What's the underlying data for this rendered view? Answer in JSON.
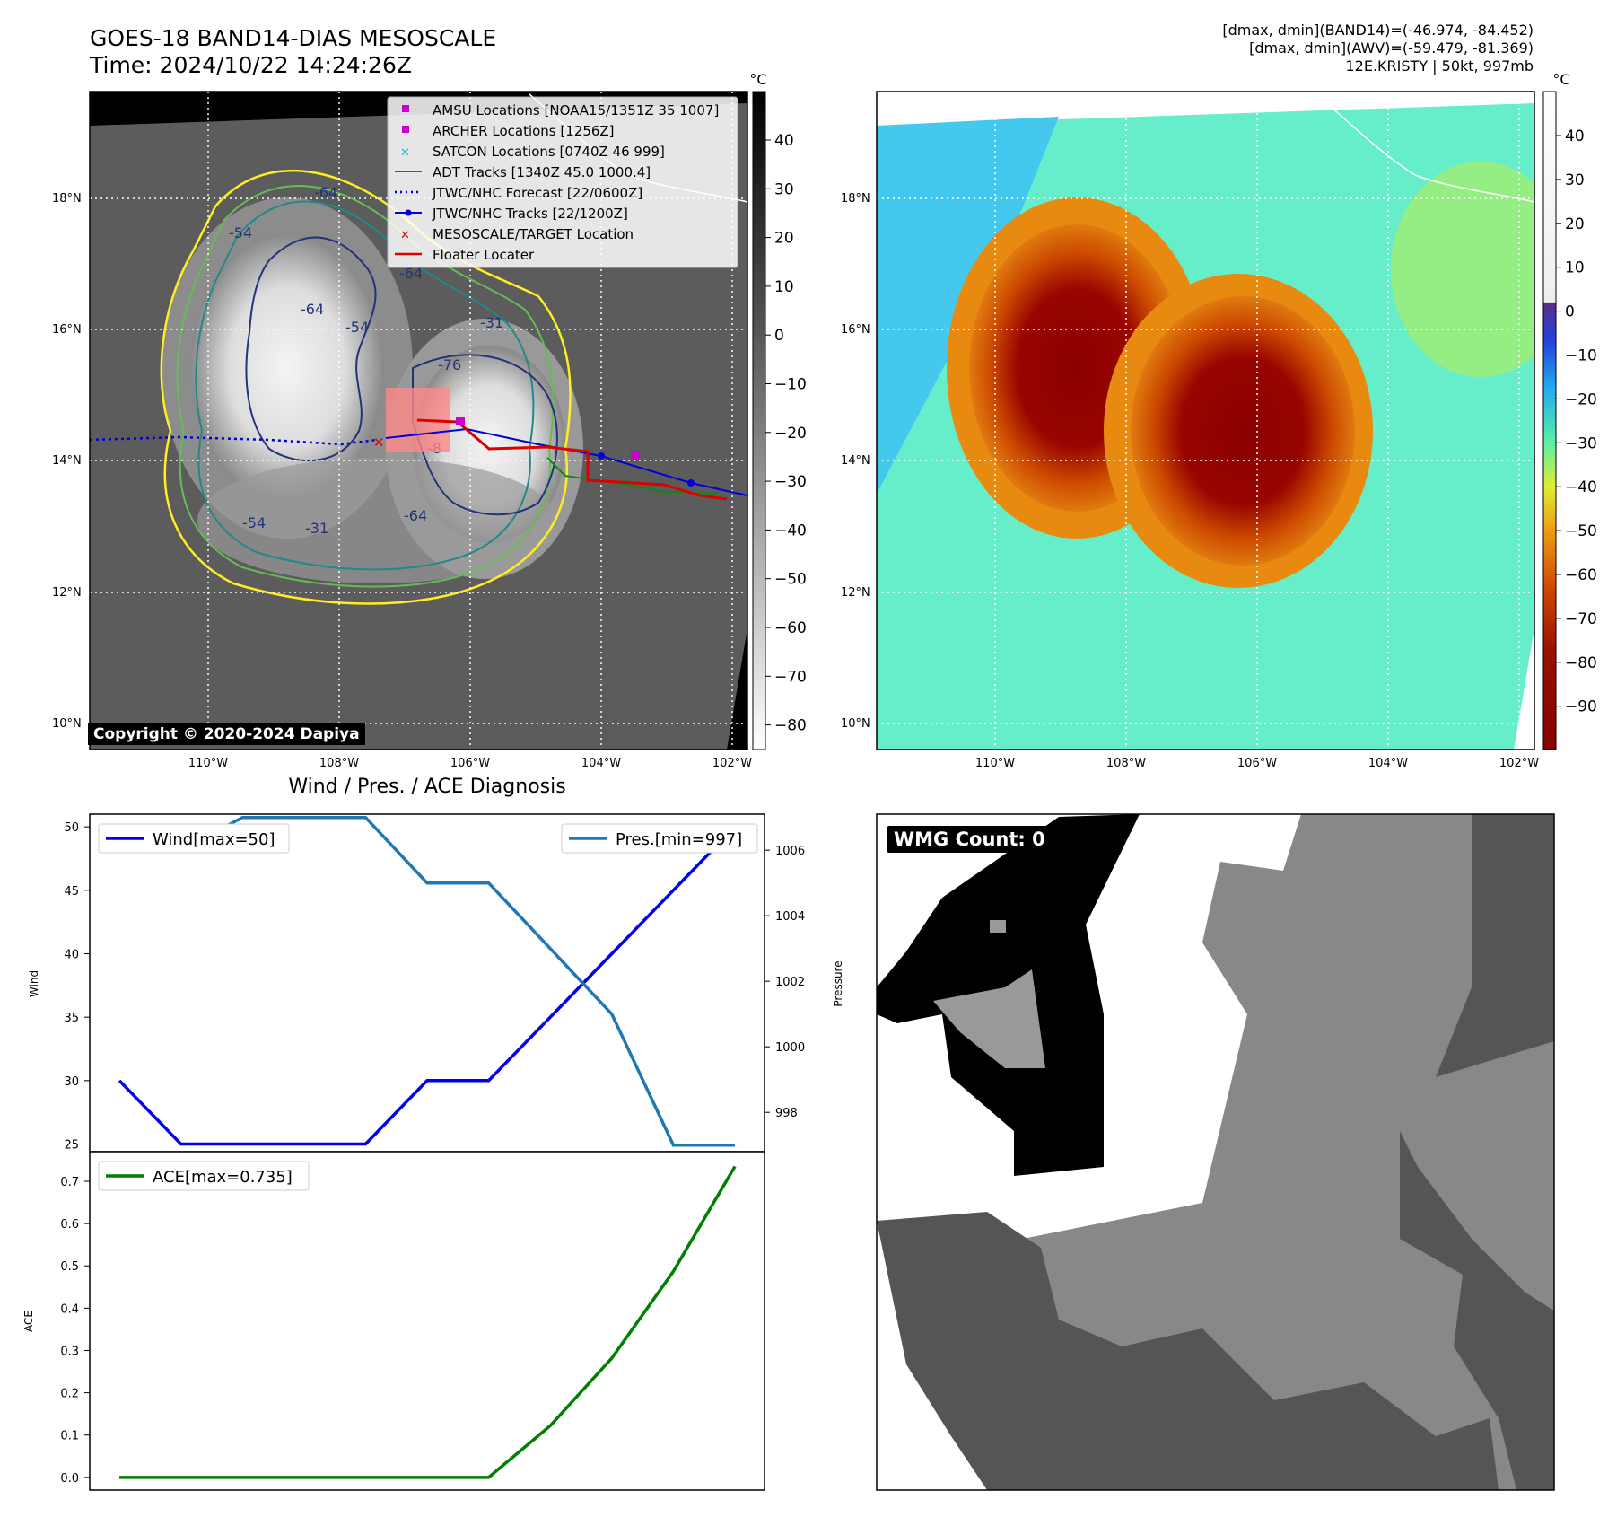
{
  "header": {
    "title_line1": "GOES-18 BAND14-DIAS MESOSCALE",
    "title_line2": "Time: 2024/10/22 14:24:26Z",
    "info_line1": "[dmax, dmin](BAND14)=(-46.974, -84.452)",
    "info_line2": "[dmax, dmin](AWV)=(-59.479, -81.369)",
    "info_line3": "12E.KRISTY | 50kt, 997mb"
  },
  "map": {
    "lat_labels": [
      "18°N",
      "16°N",
      "14°N",
      "12°N",
      "10°N"
    ],
    "lon_labels": [
      "110°W",
      "108°W",
      "106°W",
      "104°W",
      "102°W"
    ],
    "contour_labels": [
      "-64",
      "-54",
      "-64",
      "-54",
      "-64",
      "-76",
      "-31",
      "-54",
      "-31",
      "-64",
      "-8"
    ],
    "copyright": "Copyright © 2020-2024 Dapiya",
    "legend": [
      {
        "label": "AMSU Locations [NOAA15/1351Z 35 1007]",
        "color": "#cc00cc",
        "symbol": "square"
      },
      {
        "label": "ARCHER Locations [1256Z]",
        "color": "#cc00cc",
        "symbol": "square"
      },
      {
        "label": "SATCON Locations [0740Z 46 999]",
        "color": "#11bbbb",
        "symbol": "x"
      },
      {
        "label": "ADT Tracks [1340Z 45.0 1000.4]",
        "color": "#118811",
        "symbol": "line"
      },
      {
        "label": "JTWC/NHC Forecast [22/0600Z]",
        "color": "#0000dd",
        "symbol": "dotted"
      },
      {
        "label": "JTWC/NHC Tracks [22/1200Z]",
        "color": "#0000dd",
        "symbol": "line-dot"
      },
      {
        "label": "MESOSCALE/TARGET Location",
        "color": "#dd0000",
        "symbol": "x"
      },
      {
        "label": "Floater Locater",
        "color": "#dd0000",
        "symbol": "line"
      }
    ]
  },
  "colorbar_left": {
    "unit": "°C",
    "ticks": [
      "40",
      "30",
      "20",
      "10",
      "0",
      "−10",
      "−20",
      "−30",
      "−40",
      "−50",
      "−60",
      "−70",
      "−80"
    ]
  },
  "colorbar_right": {
    "unit": "°C",
    "ticks": [
      "40",
      "30",
      "20",
      "10",
      "0",
      "−10",
      "−20",
      "−30",
      "−40",
      "−50",
      "−60",
      "−70",
      "−80",
      "−90"
    ]
  },
  "diagnosis": {
    "title": "Wind / Pres. / ACE Diagnosis",
    "wind_label": "Wind[max=50]",
    "pres_label": "Pres.[min=997]",
    "ace_label": "ACE[max=0.735]",
    "wind_axis_label": "Wind",
    "pres_axis_label": "Pressure",
    "ace_axis_label": "ACE",
    "colors": {
      "wind": "#0000ee",
      "pres": "#1f77b4",
      "ace": "#008000"
    }
  },
  "wmg": {
    "label": "WMG Count: 0"
  },
  "chart_data": [
    {
      "type": "line",
      "name": "wind",
      "x": [
        0,
        1,
        2,
        3,
        4,
        5,
        6,
        7,
        8,
        9,
        10
      ],
      "values": [
        30,
        25,
        25,
        25,
        25,
        30,
        30,
        35,
        40,
        45,
        50
      ],
      "ylim": [
        24.4,
        51
      ],
      "yticks": [
        25,
        30,
        35,
        40,
        45,
        50
      ]
    },
    {
      "type": "line",
      "name": "pressure",
      "x": [
        0,
        1,
        2,
        3,
        4,
        5,
        6,
        7,
        8,
        9,
        10
      ],
      "values": [
        1006,
        1006,
        1007,
        1007,
        1007,
        1005,
        1005,
        1003,
        1001,
        997,
        997
      ],
      "ylim": [
        996.8,
        1007.1
      ],
      "yticks": [
        998,
        1000,
        1002,
        1004,
        1006
      ]
    },
    {
      "type": "line",
      "name": "ace",
      "x": [
        0,
        1,
        2,
        3,
        4,
        5,
        6,
        7,
        8,
        9,
        10
      ],
      "values": [
        0,
        0,
        0,
        0,
        0,
        0,
        0,
        0.122,
        0.282,
        0.487,
        0.735
      ],
      "ylim": [
        -0.03,
        0.77
      ],
      "yticks": [
        0.0,
        0.1,
        0.2,
        0.3,
        0.4,
        0.5,
        0.6,
        0.7
      ]
    }
  ]
}
